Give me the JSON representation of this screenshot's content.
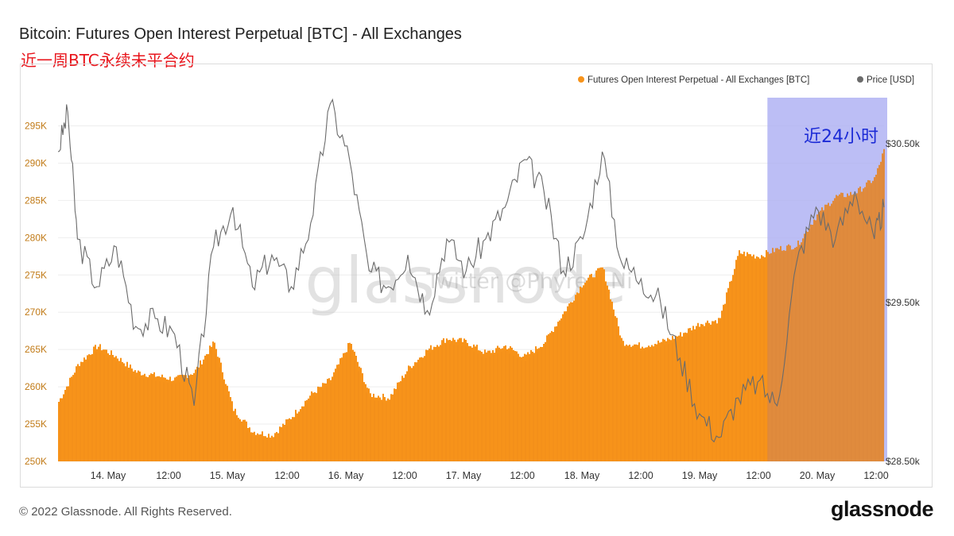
{
  "header": {
    "title": "Bitcoin: Futures Open Interest Perpetual [BTC] - All Exchanges",
    "subtitle": "近一周BTC永续未平合约"
  },
  "footer": {
    "copyright": "© 2022 Glassnode. All Rights Reserved.",
    "logo": "glassnode"
  },
  "watermark": {
    "brand": "glassnode",
    "twitter": "Twitter @Phyrex_Ni"
  },
  "colors": {
    "oi": "#f7931a",
    "price": "#6b6b6b",
    "highlight": "#b9c2f8",
    "annotation": "#1c2bd6"
  },
  "chart_data": {
    "type": "area",
    "title": "Bitcoin: Futures Open Interest Perpetual [BTC] - All Exchanges",
    "x_range": [
      "2022-05-13T12:00",
      "2022-05-20T14:00"
    ],
    "x_ticks": [
      "14. May",
      "12:00",
      "15. May",
      "12:00",
      "16. May",
      "12:00",
      "17. May",
      "12:00",
      "18. May",
      "12:00",
      "19. May",
      "12:00",
      "20. May",
      "12:00"
    ],
    "y_left": {
      "ticks": [
        "250K",
        "255K",
        "260K",
        "265K",
        "270K",
        "275K",
        "280K",
        "285K",
        "290K",
        "295K"
      ],
      "ylim": [
        250000,
        299000
      ]
    },
    "y_right": {
      "ticks": [
        "$28.50k",
        "$29.50k",
        "$30.50k"
      ],
      "ylim": [
        28500,
        30800
      ]
    },
    "legend": {
      "placement": "top-right",
      "items": [
        {
          "label": "Futures Open Interest Perpetual - All Exchanges [BTC]",
          "color": "#f7931a"
        },
        {
          "label": "Price [USD]",
          "color": "#6b6b6b"
        }
      ]
    },
    "series": [
      {
        "name": "Futures Open Interest Perpetual - All Exchanges [BTC]",
        "kind": "area",
        "axis": "left",
        "x": [
          "2022-05-13T12:00",
          "2022-05-13T16:00",
          "2022-05-13T20:00",
          "2022-05-14T00:00",
          "2022-05-14T04:00",
          "2022-05-14T08:00",
          "2022-05-14T12:00",
          "2022-05-14T16:00",
          "2022-05-14T20:00",
          "2022-05-15T00:00",
          "2022-05-15T04:00",
          "2022-05-15T08:00",
          "2022-05-15T12:00",
          "2022-05-15T16:00",
          "2022-05-15T20:00",
          "2022-05-16T00:00",
          "2022-05-16T04:00",
          "2022-05-16T08:00",
          "2022-05-16T12:00",
          "2022-05-16T16:00",
          "2022-05-16T20:00",
          "2022-05-17T00:00",
          "2022-05-17T04:00",
          "2022-05-17T08:00",
          "2022-05-17T12:00",
          "2022-05-17T16:00",
          "2022-05-17T20:00",
          "2022-05-18T00:00",
          "2022-05-18T04:00",
          "2022-05-18T08:00",
          "2022-05-18T12:00",
          "2022-05-18T16:00",
          "2022-05-18T20:00",
          "2022-05-19T00:00",
          "2022-05-19T04:00",
          "2022-05-19T08:00",
          "2022-05-19T12:00",
          "2022-05-19T16:00",
          "2022-05-19T20:00",
          "2022-05-20T00:00",
          "2022-05-20T04:00",
          "2022-05-20T08:00",
          "2022-05-20T12:00",
          "2022-05-20T14:00"
        ],
        "values": [
          258000,
          263000,
          265500,
          264000,
          262000,
          261500,
          261000,
          262000,
          266000,
          257000,
          254000,
          253500,
          256000,
          259000,
          261000,
          266000,
          259000,
          258500,
          262500,
          265000,
          266500,
          266000,
          264500,
          265500,
          264000,
          266000,
          270000,
          274000,
          276000,
          266000,
          265500,
          266000,
          267000,
          268500,
          269000,
          278000,
          277500,
          278500,
          279000,
          283000,
          285500,
          286000,
          288000,
          292000
        ]
      },
      {
        "name": "Price [USD]",
        "kind": "line",
        "axis": "right",
        "x": [
          "2022-05-13T12:00",
          "2022-05-13T14:00",
          "2022-05-13T16:00",
          "2022-05-13T20:00",
          "2022-05-14T00:00",
          "2022-05-14T04:00",
          "2022-05-14T08:00",
          "2022-05-14T12:00",
          "2022-05-14T16:00",
          "2022-05-14T20:00",
          "2022-05-15T00:00",
          "2022-05-15T04:00",
          "2022-05-15T08:00",
          "2022-05-15T12:00",
          "2022-05-15T16:00",
          "2022-05-15T20:00",
          "2022-05-16T00:00",
          "2022-05-16T04:00",
          "2022-05-16T08:00",
          "2022-05-16T12:00",
          "2022-05-16T16:00",
          "2022-05-16T20:00",
          "2022-05-17T00:00",
          "2022-05-17T04:00",
          "2022-05-17T08:00",
          "2022-05-17T12:00",
          "2022-05-17T16:00",
          "2022-05-17T20:00",
          "2022-05-18T00:00",
          "2022-05-18T04:00",
          "2022-05-18T08:00",
          "2022-05-18T12:00",
          "2022-05-18T16:00",
          "2022-05-18T20:00",
          "2022-05-19T00:00",
          "2022-05-19T04:00",
          "2022-05-19T08:00",
          "2022-05-19T12:00",
          "2022-05-19T16:00",
          "2022-05-19T20:00",
          "2022-05-20T00:00",
          "2022-05-20T04:00",
          "2022-05-20T08:00",
          "2022-05-20T12:00",
          "2022-05-20T14:00"
        ],
        "values": [
          30450,
          30700,
          29900,
          29600,
          29850,
          29350,
          29400,
          29300,
          28850,
          29850,
          30100,
          29600,
          29800,
          29600,
          30000,
          30750,
          30400,
          29700,
          29600,
          29800,
          29450,
          29900,
          29700,
          29900,
          30100,
          30400,
          30200,
          29700,
          29900,
          30450,
          29750,
          29650,
          29500,
          29150,
          28800,
          28650,
          28900,
          29000,
          28850,
          29750,
          30100,
          29900,
          30200,
          29900,
          30100
        ]
      }
    ],
    "highlight": {
      "x_range": [
        "2022-05-19T14:00",
        "2022-05-20T14:00"
      ],
      "label": "近24小时"
    }
  }
}
